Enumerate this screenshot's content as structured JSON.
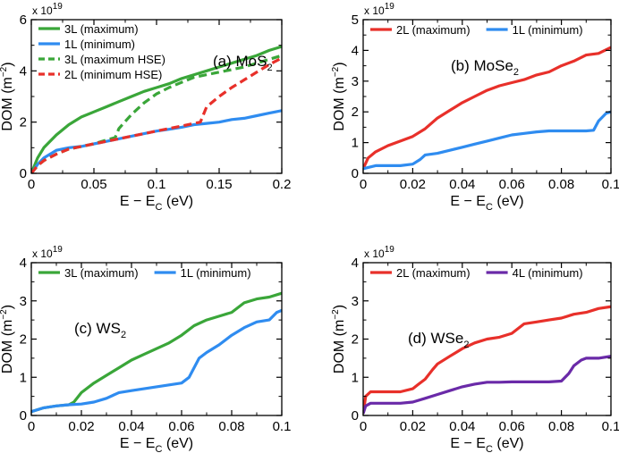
{
  "chart_data": [
    {
      "type": "line",
      "panel_label": "(a) MoS",
      "panel_label_sub": "2",
      "scale_base": "x 10",
      "scale_exp": "19",
      "xlabel": "E − E",
      "xlabel_sub": "C",
      "xlabel_unit": " (eV)",
      "ylabel": "DOM (m",
      "ylabel_sup": "−2",
      "ylabel_end": ")",
      "xlim": [
        0,
        0.2
      ],
      "ylim": [
        0,
        6
      ],
      "xticks": [
        0,
        0.05,
        0.1,
        0.15,
        0.2
      ],
      "xtick_labels": [
        "0",
        "0.05",
        "0.1",
        "0.15",
        "0.2"
      ],
      "yticks": [
        0,
        2,
        4,
        6
      ],
      "ytick_labels": [
        "0",
        "2",
        "4",
        "6"
      ],
      "series": [
        {
          "name": "3L (maximum)",
          "color": "#3aa639",
          "dash": "solid",
          "x": [
            0,
            0.005,
            0.01,
            0.02,
            0.03,
            0.04,
            0.05,
            0.06,
            0.07,
            0.08,
            0.09,
            0.1,
            0.11,
            0.12,
            0.13,
            0.14,
            0.15,
            0.16,
            0.17,
            0.18,
            0.19,
            0.2
          ],
          "y": [
            0,
            0.6,
            1.0,
            1.5,
            1.9,
            2.2,
            2.4,
            2.6,
            2.8,
            3.0,
            3.2,
            3.35,
            3.5,
            3.7,
            3.85,
            4.0,
            4.15,
            4.3,
            4.45,
            4.6,
            4.8,
            4.95
          ]
        },
        {
          "name": "1L (minimum)",
          "color": "#2f8cf0",
          "dash": "solid",
          "x": [
            0,
            0.005,
            0.01,
            0.015,
            0.02,
            0.03,
            0.04,
            0.05,
            0.06,
            0.07,
            0.08,
            0.09,
            0.1,
            0.11,
            0.12,
            0.13,
            0.14,
            0.15,
            0.16,
            0.17,
            0.18,
            0.19,
            0.2
          ],
          "y": [
            0,
            0.35,
            0.6,
            0.75,
            0.9,
            1.0,
            1.05,
            1.15,
            1.25,
            1.35,
            1.45,
            1.55,
            1.65,
            1.72,
            1.8,
            1.9,
            1.95,
            2.0,
            2.1,
            2.15,
            2.25,
            2.35,
            2.45
          ]
        },
        {
          "name": "3L (maximum HSE)",
          "color": "#3aa639",
          "dash": "dashed",
          "x": [
            0,
            0.005,
            0.01,
            0.02,
            0.03,
            0.04,
            0.05,
            0.06,
            0.067,
            0.07,
            0.08,
            0.09,
            0.1,
            0.11,
            0.12,
            0.13,
            0.14,
            0.15,
            0.16,
            0.17,
            0.18,
            0.19,
            0.2
          ],
          "y": [
            0,
            0.3,
            0.5,
            0.75,
            0.95,
            1.05,
            1.15,
            1.3,
            1.4,
            1.75,
            2.3,
            2.75,
            3.1,
            3.35,
            3.55,
            3.75,
            3.85,
            3.95,
            4.05,
            4.15,
            4.3,
            4.45,
            4.6
          ]
        },
        {
          "name": "2L (minimum HSE)",
          "color": "#e8302a",
          "dash": "dashed",
          "x": [
            0,
            0.005,
            0.01,
            0.02,
            0.03,
            0.04,
            0.05,
            0.06,
            0.07,
            0.08,
            0.09,
            0.1,
            0.11,
            0.12,
            0.13,
            0.135,
            0.14,
            0.15,
            0.16,
            0.17,
            0.18,
            0.19,
            0.2
          ],
          "y": [
            0,
            0.3,
            0.5,
            0.75,
            0.95,
            1.05,
            1.15,
            1.25,
            1.35,
            1.45,
            1.55,
            1.65,
            1.75,
            1.85,
            1.95,
            2.0,
            2.6,
            3.0,
            3.35,
            3.65,
            3.95,
            4.25,
            4.5
          ]
        }
      ],
      "legend_position": "top-left"
    },
    {
      "type": "line",
      "panel_label": "(b) MoSe",
      "panel_label_sub": "2",
      "scale_base": "x 10",
      "scale_exp": "19",
      "xlabel": "E − E",
      "xlabel_sub": "C",
      "xlabel_unit": " (eV)",
      "ylabel": "DOM (m",
      "ylabel_sup": "−2",
      "ylabel_end": ")",
      "xlim": [
        0,
        0.1
      ],
      "ylim": [
        0,
        5
      ],
      "xticks": [
        0,
        0.02,
        0.04,
        0.06,
        0.08,
        0.1
      ],
      "xtick_labels": [
        "0",
        "0.02",
        "0.04",
        "0.06",
        "0.08",
        "0.1"
      ],
      "yticks": [
        0,
        1,
        2,
        3,
        4,
        5
      ],
      "ytick_labels": [
        "0",
        "1",
        "2",
        "3",
        "4",
        "5"
      ],
      "series": [
        {
          "name": "2L (maximum)",
          "color": "#e8302a",
          "dash": "solid",
          "x": [
            0,
            0.002,
            0.005,
            0.01,
            0.015,
            0.02,
            0.025,
            0.03,
            0.035,
            0.04,
            0.045,
            0.05,
            0.055,
            0.06,
            0.065,
            0.07,
            0.075,
            0.08,
            0.085,
            0.09,
            0.095,
            0.1
          ],
          "y": [
            0.15,
            0.5,
            0.7,
            0.9,
            1.05,
            1.2,
            1.45,
            1.8,
            2.05,
            2.3,
            2.5,
            2.7,
            2.85,
            2.95,
            3.05,
            3.2,
            3.3,
            3.5,
            3.65,
            3.85,
            3.9,
            4.1
          ]
        },
        {
          "name": "1L (minimum)",
          "color": "#2f8cf0",
          "dash": "solid",
          "x": [
            0,
            0.005,
            0.01,
            0.015,
            0.02,
            0.023,
            0.025,
            0.03,
            0.035,
            0.04,
            0.045,
            0.05,
            0.055,
            0.06,
            0.065,
            0.07,
            0.075,
            0.08,
            0.085,
            0.09,
            0.093,
            0.095,
            0.098,
            0.1
          ],
          "y": [
            0.15,
            0.25,
            0.25,
            0.25,
            0.3,
            0.45,
            0.6,
            0.65,
            0.75,
            0.85,
            0.95,
            1.05,
            1.15,
            1.25,
            1.3,
            1.35,
            1.38,
            1.38,
            1.38,
            1.38,
            1.4,
            1.7,
            1.95,
            2.0
          ]
        }
      ],
      "legend_position": "top"
    },
    {
      "type": "line",
      "panel_label": "(c) WS",
      "panel_label_sub": "2",
      "scale_base": "x 10",
      "scale_exp": "19",
      "xlabel": "E − E",
      "xlabel_sub": "C",
      "xlabel_unit": " (eV)",
      "ylabel": "DOM (m",
      "ylabel_sup": "−2",
      "ylabel_end": ")",
      "xlim": [
        0,
        0.1
      ],
      "ylim": [
        0,
        4
      ],
      "xticks": [
        0,
        0.02,
        0.04,
        0.06,
        0.08,
        0.1
      ],
      "xtick_labels": [
        "0",
        "0.02",
        "0.04",
        "0.06",
        "0.08",
        "0.1"
      ],
      "yticks": [
        0,
        1,
        2,
        3,
        4
      ],
      "ytick_labels": [
        "0",
        "1",
        "2",
        "3",
        "4"
      ],
      "series": [
        {
          "name": "3L (maximum)",
          "color": "#3aa639",
          "dash": "solid",
          "x": [
            0,
            0.005,
            0.01,
            0.015,
            0.017,
            0.02,
            0.025,
            0.03,
            0.035,
            0.04,
            0.045,
            0.05,
            0.055,
            0.06,
            0.065,
            0.07,
            0.075,
            0.08,
            0.085,
            0.09,
            0.095,
            0.1
          ],
          "y": [
            0.1,
            0.2,
            0.25,
            0.28,
            0.35,
            0.6,
            0.85,
            1.05,
            1.25,
            1.45,
            1.6,
            1.75,
            1.9,
            2.1,
            2.35,
            2.5,
            2.6,
            2.7,
            2.95,
            3.05,
            3.1,
            3.2
          ]
        },
        {
          "name": "1L (minimum)",
          "color": "#2f8cf0",
          "dash": "solid",
          "x": [
            0,
            0.005,
            0.01,
            0.015,
            0.02,
            0.025,
            0.03,
            0.035,
            0.04,
            0.045,
            0.05,
            0.055,
            0.06,
            0.063,
            0.067,
            0.07,
            0.075,
            0.08,
            0.085,
            0.09,
            0.095,
            0.098,
            0.1
          ],
          "y": [
            0.1,
            0.2,
            0.25,
            0.28,
            0.3,
            0.35,
            0.45,
            0.6,
            0.65,
            0.7,
            0.75,
            0.8,
            0.85,
            1.0,
            1.5,
            1.65,
            1.85,
            2.1,
            2.3,
            2.45,
            2.5,
            2.7,
            2.75
          ]
        }
      ],
      "legend_position": "top"
    },
    {
      "type": "line",
      "panel_label": "(d) WSe",
      "panel_label_sub": "2",
      "scale_base": "x 10",
      "scale_exp": "19",
      "xlabel": "E − E",
      "xlabel_sub": "C",
      "xlabel_unit": " (eV)",
      "ylabel": "DOM (m",
      "ylabel_sup": "−2",
      "ylabel_end": ")",
      "xlim": [
        0,
        0.1
      ],
      "ylim": [
        0,
        4
      ],
      "xticks": [
        0,
        0.02,
        0.04,
        0.06,
        0.08,
        0.1
      ],
      "xtick_labels": [
        "0",
        "0.02",
        "0.04",
        "0.06",
        "0.08",
        "0.1"
      ],
      "yticks": [
        0,
        1,
        2,
        3,
        4
      ],
      "ytick_labels": [
        "0",
        "1",
        "2",
        "3",
        "4"
      ],
      "series": [
        {
          "name": "2L (maximum)",
          "color": "#e8302a",
          "dash": "solid",
          "x": [
            0,
            0.001,
            0.003,
            0.01,
            0.015,
            0.02,
            0.022,
            0.025,
            0.028,
            0.03,
            0.035,
            0.04,
            0.045,
            0.05,
            0.055,
            0.06,
            0.065,
            0.07,
            0.075,
            0.08,
            0.085,
            0.09,
            0.095,
            0.1
          ],
          "y": [
            0.05,
            0.5,
            0.62,
            0.62,
            0.62,
            0.7,
            0.8,
            0.95,
            1.2,
            1.35,
            1.55,
            1.75,
            1.9,
            2.0,
            2.05,
            2.15,
            2.4,
            2.45,
            2.5,
            2.55,
            2.65,
            2.7,
            2.8,
            2.85
          ]
        },
        {
          "name": "4L (minimum)",
          "color": "#6a2aa8",
          "dash": "solid",
          "x": [
            0,
            0.001,
            0.003,
            0.01,
            0.015,
            0.02,
            0.025,
            0.03,
            0.035,
            0.04,
            0.045,
            0.05,
            0.055,
            0.06,
            0.065,
            0.07,
            0.075,
            0.08,
            0.083,
            0.085,
            0.088,
            0.09,
            0.095,
            0.1
          ],
          "y": [
            0.05,
            0.25,
            0.32,
            0.32,
            0.32,
            0.35,
            0.45,
            0.55,
            0.65,
            0.75,
            0.82,
            0.87,
            0.87,
            0.88,
            0.88,
            0.88,
            0.88,
            0.9,
            1.1,
            1.3,
            1.45,
            1.5,
            1.5,
            1.55
          ]
        }
      ],
      "legend_position": "top"
    }
  ]
}
